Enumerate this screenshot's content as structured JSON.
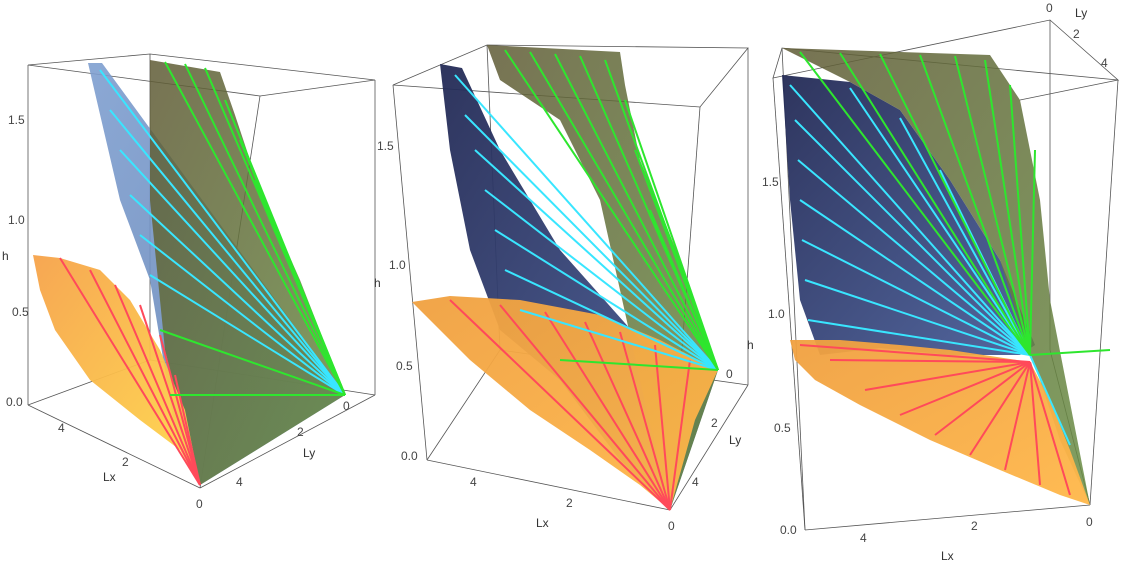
{
  "chart_data": [
    {
      "type": "surface3d",
      "view": "Lx left, Ly right",
      "axes": {
        "x_label": "Lx",
        "y_label": "Ly",
        "z_label": "h"
      },
      "z_ticks": [
        "0.0",
        "0.5",
        "1.0",
        "1.5"
      ],
      "x_ticks": [
        "4",
        "2",
        "0"
      ],
      "y_ticks": [
        "0",
        "2",
        "4"
      ],
      "surfaces": [
        {
          "name": "",
          "color": "#f0a040",
          "ruling_color": "#ff4a5a",
          "h_range": [
            0,
            0.8
          ]
        },
        {
          "name": "",
          "color": "#6f8fbf",
          "ruling_color": "#39e6ff",
          "h_range": [
            0,
            1.8
          ]
        },
        {
          "name": "",
          "color": "#6b8a40",
          "ruling_color": "#2ee62e",
          "h_range": [
            0,
            1.8
          ]
        }
      ]
    },
    {
      "type": "surface3d",
      "view": "Lx front, Ly right",
      "axes": {
        "x_label": "Lx",
        "y_label": "Ly",
        "z_label": "h"
      },
      "z_ticks": [
        "0.0",
        "0.5",
        "1.0",
        "1.5"
      ],
      "x_ticks": [
        "4",
        "2",
        "0"
      ],
      "y_ticks": [
        "0",
        "2",
        "4"
      ],
      "surfaces": [
        {
          "name": "",
          "color": "#f0a040",
          "ruling_color": "#ff4a5a",
          "h_range": [
            0,
            0.8
          ]
        },
        {
          "name": "",
          "color": "#3d4f80",
          "ruling_color": "#39e6ff",
          "h_range": [
            0,
            1.8
          ]
        },
        {
          "name": "",
          "color": "#5e6a3a",
          "ruling_color": "#2ee62e",
          "h_range": [
            0,
            1.8
          ]
        }
      ]
    },
    {
      "type": "surface3d",
      "view": "Lx front, Ly top",
      "axes": {
        "x_label": "Lx",
        "y_label": "Ly",
        "z_label": "h"
      },
      "z_ticks": [
        "0.0",
        "0.5",
        "1.0",
        "1.5"
      ],
      "x_ticks": [
        "4",
        "2",
        "0"
      ],
      "y_ticks": [
        "0",
        "2",
        "4"
      ],
      "surfaces": [
        {
          "name": "",
          "color": "#f0a040",
          "ruling_color": "#ff4a5a",
          "h_range": [
            0,
            0.8
          ]
        },
        {
          "name": "",
          "color": "#3d4f80",
          "ruling_color": "#39e6ff",
          "h_range": [
            0,
            1.8
          ]
        },
        {
          "name": "",
          "color": "#5e6a3a",
          "ruling_color": "#2ee62e",
          "h_range": [
            0,
            1.8
          ]
        }
      ]
    }
  ]
}
